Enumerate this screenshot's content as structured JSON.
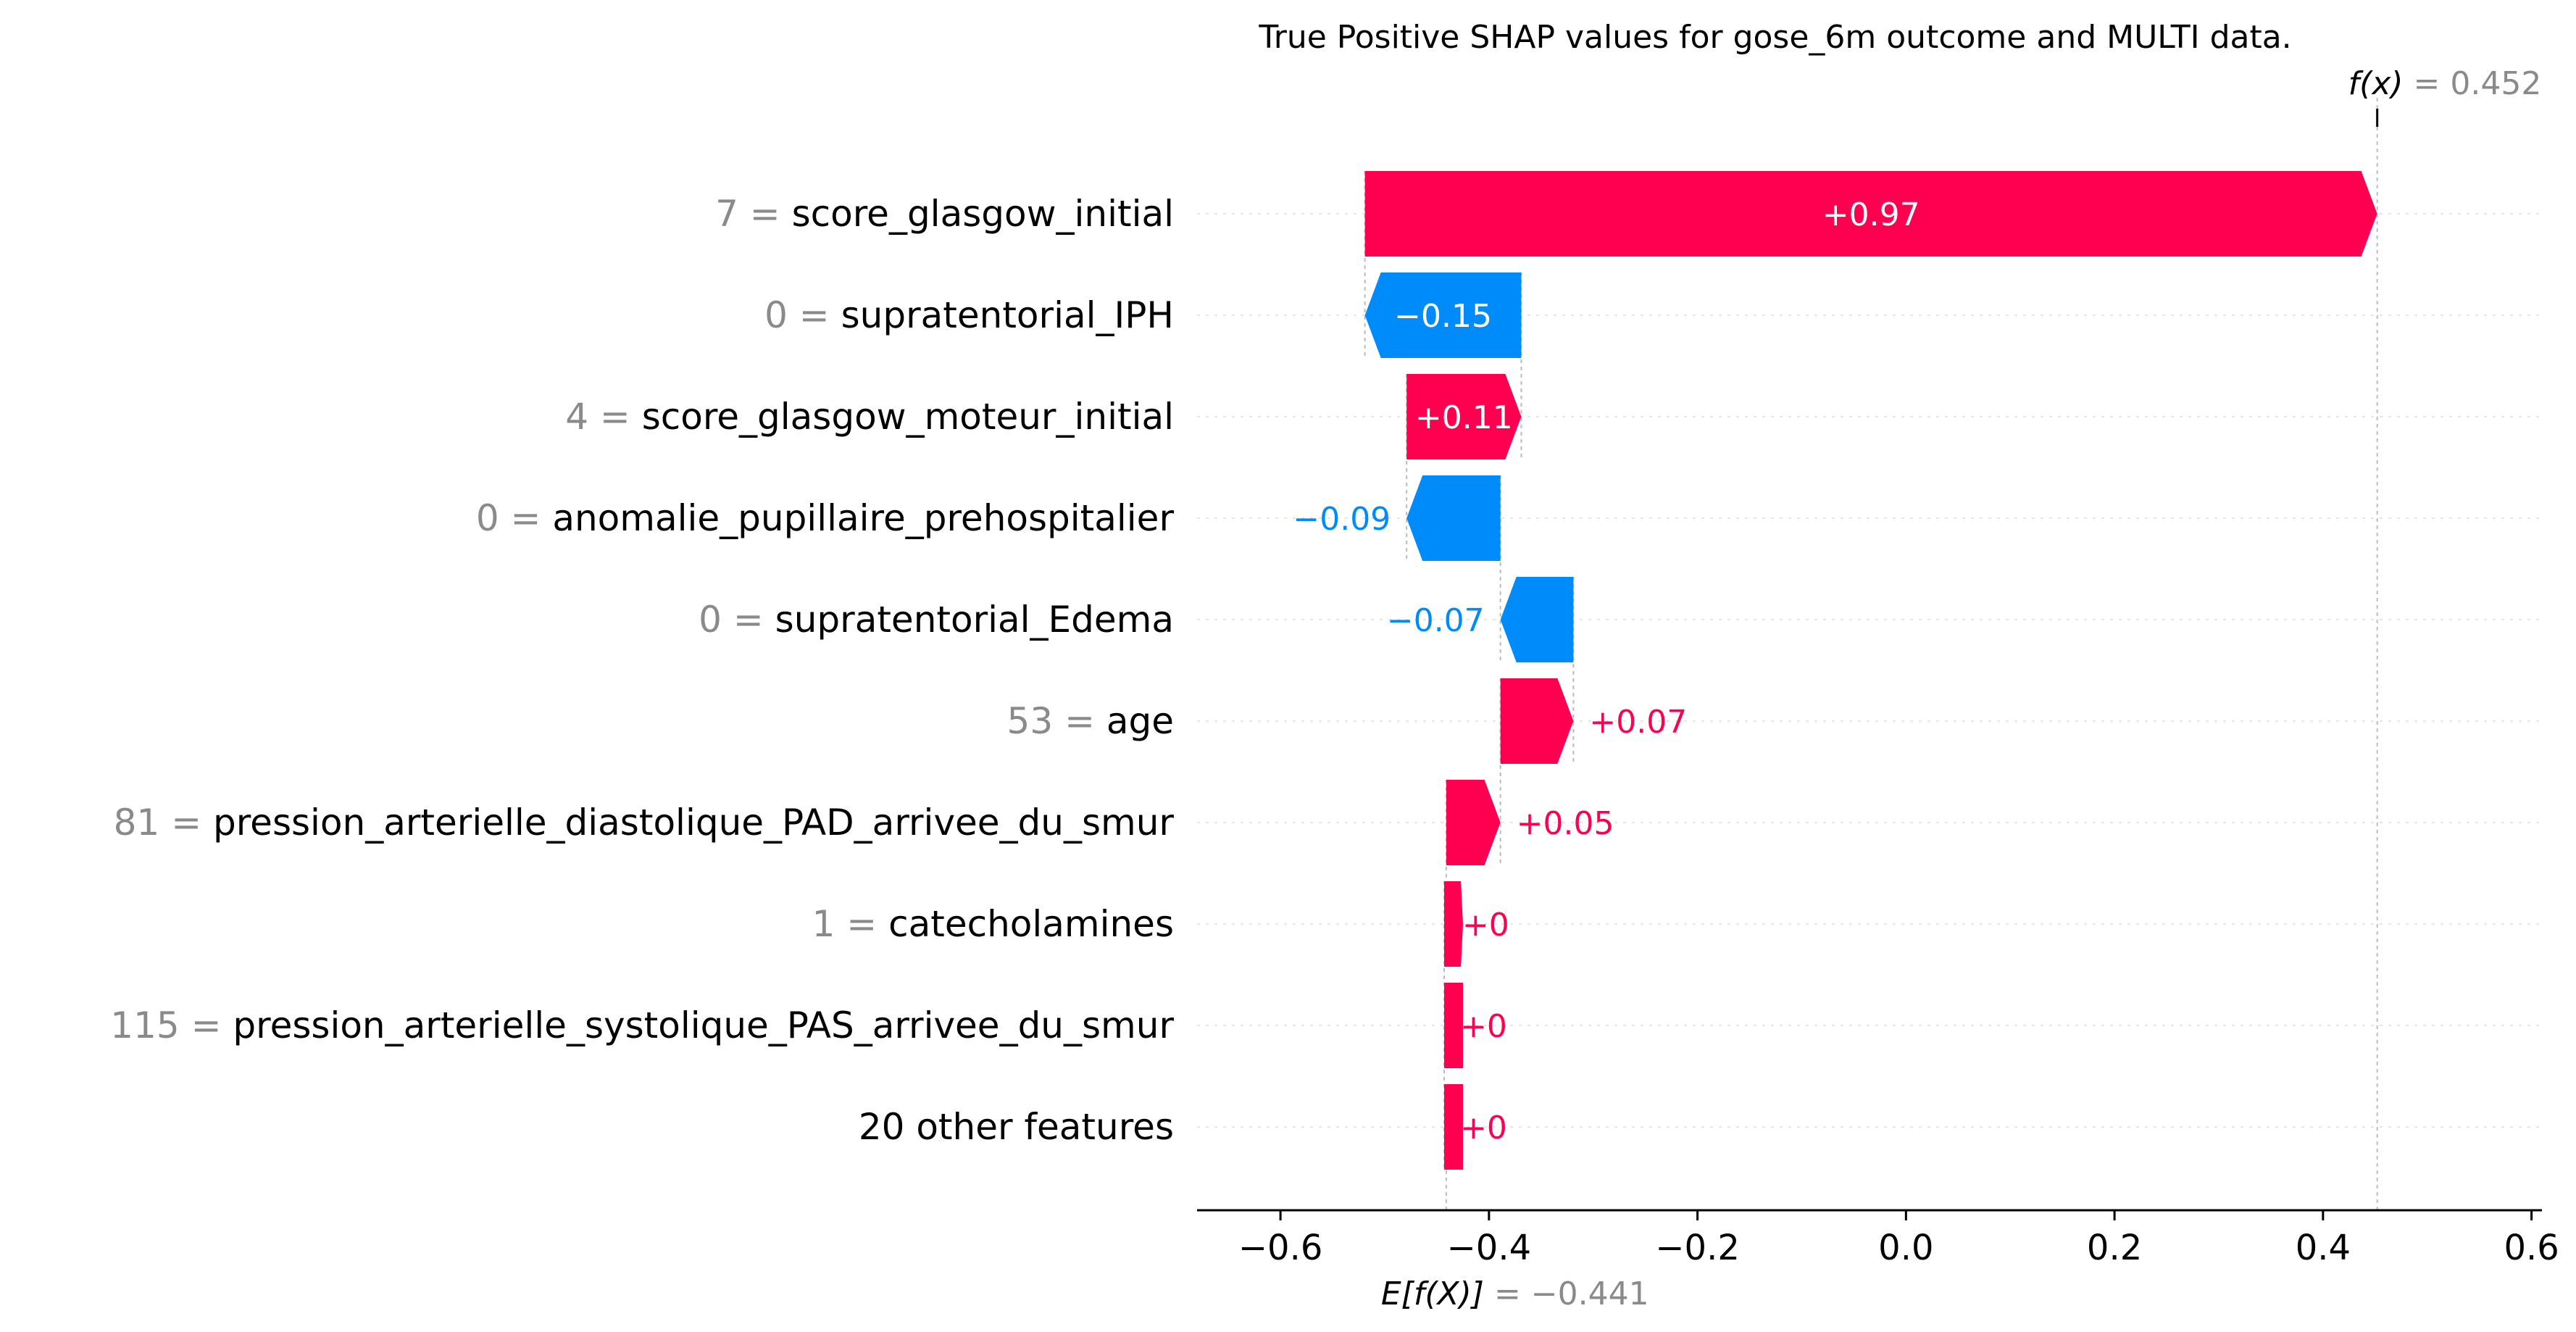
{
  "chart_data": {
    "type": "waterfall",
    "title": "True Positive SHAP values for gose_6m outcome and MULTI data.",
    "base_value": -0.441,
    "base_label_prefix": "E[f(X)] =",
    "base_label_value": "−0.441",
    "output_value": 0.452,
    "output_label_prefix": "f(x) =",
    "output_label_value": "0.452",
    "xlim": [
      -0.68,
      0.61
    ],
    "x_ticks": [
      -0.6,
      -0.4,
      -0.2,
      0.0,
      0.2,
      0.4,
      0.6
    ],
    "x_tick_labels": [
      "−0.6",
      "−0.4",
      "−0.2",
      "0.0",
      "0.2",
      "0.4",
      "0.6"
    ],
    "colors": {
      "positive": "#ff0051",
      "negative": "#008bfb",
      "axis": "#000000",
      "value": "#8a8a8a",
      "grid": "#e5e5e5"
    },
    "features": [
      {
        "value": "7",
        "name": "score_glasgow_initial",
        "start": -0.519,
        "end": 0.452,
        "label": "+0.97"
      },
      {
        "value": "0",
        "name": "supratentorial_IPH",
        "start": -0.369,
        "end": -0.519,
        "label": "−0.15"
      },
      {
        "value": "4",
        "name": "score_glasgow_moteur_initial",
        "start": -0.479,
        "end": -0.369,
        "label": "+0.11"
      },
      {
        "value": "0",
        "name": "anomalie_pupillaire_prehospitalier",
        "start": -0.389,
        "end": -0.479,
        "label": "−0.09"
      },
      {
        "value": "0",
        "name": "supratentorial_Edema",
        "start": -0.319,
        "end": -0.389,
        "label": "−0.07"
      },
      {
        "value": "53",
        "name": "age",
        "start": -0.389,
        "end": -0.319,
        "label": "+0.07"
      },
      {
        "value": "81",
        "name": "pression_arterielle_diastolique_PAD_arrivee_du_smur",
        "start": -0.441,
        "end": -0.389,
        "label": "+0.05"
      },
      {
        "value": "1",
        "name": "catecholamines",
        "start": -0.443,
        "end": -0.441,
        "label": "+0"
      },
      {
        "value": "115",
        "name": "pression_arterielle_systolique_PAS_arrivee_du_smur",
        "start": -0.443,
        "end": -0.443,
        "label": "+0"
      },
      {
        "value": "",
        "name": "20 other features",
        "start": -0.443,
        "end": -0.443,
        "label": "+0"
      }
    ]
  }
}
